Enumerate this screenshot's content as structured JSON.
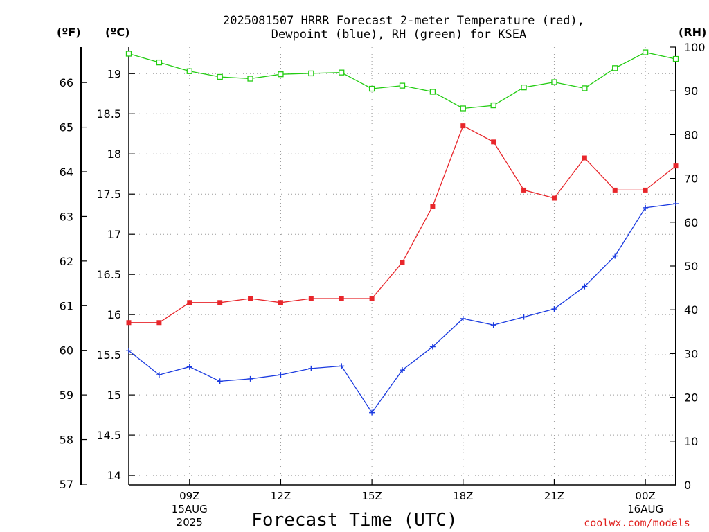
{
  "title": {
    "line1": "2025081507 HRRR Forecast 2-meter Temperature (red),",
    "line2": "Dewpoint (blue), RH (green) for KSEA"
  },
  "units": {
    "fahrenheit": "(ºF)",
    "celsius": "(ºC)",
    "rh": "(RH)"
  },
  "xlabel": "Forecast Time (UTC)",
  "credit": "coolwx.com/models",
  "colors": {
    "temperature": "#e8262b",
    "dewpoint": "#1a3ae0",
    "rh": "#22cc11",
    "grid": "#9a9a9a"
  },
  "chart_data": {
    "type": "line",
    "x": [
      "2025-08-15T07Z",
      "2025-08-15T08Z",
      "2025-08-15T09Z",
      "2025-08-15T10Z",
      "2025-08-15T11Z",
      "2025-08-15T12Z",
      "2025-08-15T13Z",
      "2025-08-15T14Z",
      "2025-08-15T15Z",
      "2025-08-15T16Z",
      "2025-08-15T17Z",
      "2025-08-15T18Z",
      "2025-08-15T19Z",
      "2025-08-15T20Z",
      "2025-08-15T21Z",
      "2025-08-15T22Z",
      "2025-08-15T23Z",
      "2025-08-16T00Z",
      "2025-08-16T01Z"
    ],
    "xlim": [
      "2025-08-15T07Z",
      "2025-08-16T01Z"
    ],
    "x_ticks": [
      {
        "at": "2025-08-15T09Z",
        "lines": [
          "09Z",
          "15AUG",
          "2025"
        ]
      },
      {
        "at": "2025-08-15T12Z",
        "lines": [
          "12Z"
        ]
      },
      {
        "at": "2025-08-15T15Z",
        "lines": [
          "15Z"
        ]
      },
      {
        "at": "2025-08-15T18Z",
        "lines": [
          "18Z"
        ]
      },
      {
        "at": "2025-08-15T21Z",
        "lines": [
          "21Z"
        ]
      },
      {
        "at": "2025-08-16T00Z",
        "lines": [
          "00Z",
          "16AUG"
        ]
      }
    ],
    "series": [
      {
        "key": "temperature",
        "marker": "filled-square",
        "axis": "celsius",
        "values": [
          15.9,
          15.9,
          16.15,
          16.15,
          16.2,
          16.15,
          16.2,
          16.2,
          16.2,
          16.65,
          17.35,
          18.35,
          18.15,
          17.55,
          17.45,
          17.95,
          17.55,
          17.55,
          17.85
        ]
      },
      {
        "key": "dewpoint",
        "marker": "plus",
        "axis": "celsius",
        "values": [
          15.55,
          15.25,
          15.35,
          15.17,
          15.2,
          15.25,
          15.33,
          15.36,
          14.78,
          15.31,
          15.6,
          15.95,
          15.87,
          15.97,
          16.07,
          16.35,
          16.73,
          17.33,
          17.38
        ]
      },
      {
        "key": "rh",
        "marker": "open-square",
        "axis": "rh",
        "values": [
          98.5,
          96.5,
          94.5,
          93.2,
          92.8,
          93.8,
          94.0,
          94.2,
          90.5,
          91.2,
          89.8,
          86.0,
          86.7,
          90.8,
          92.0,
          90.6,
          95.2,
          98.8,
          97.3
        ]
      }
    ],
    "axes": {
      "celsius": {
        "ylim": [
          13.88,
          19.33
        ],
        "ticks": [
          14,
          14.5,
          15,
          15.5,
          16,
          16.5,
          17,
          17.5,
          18,
          18.5,
          19
        ]
      },
      "fahrenheit": {
        "ticks": [
          57,
          58,
          59,
          60,
          61,
          62,
          63,
          64,
          65,
          66
        ]
      },
      "rh": {
        "ylim": [
          0,
          100
        ],
        "ticks": [
          0,
          10,
          20,
          30,
          40,
          50,
          60,
          70,
          80,
          90,
          100
        ]
      }
    },
    "grid": true,
    "legend": "none"
  }
}
